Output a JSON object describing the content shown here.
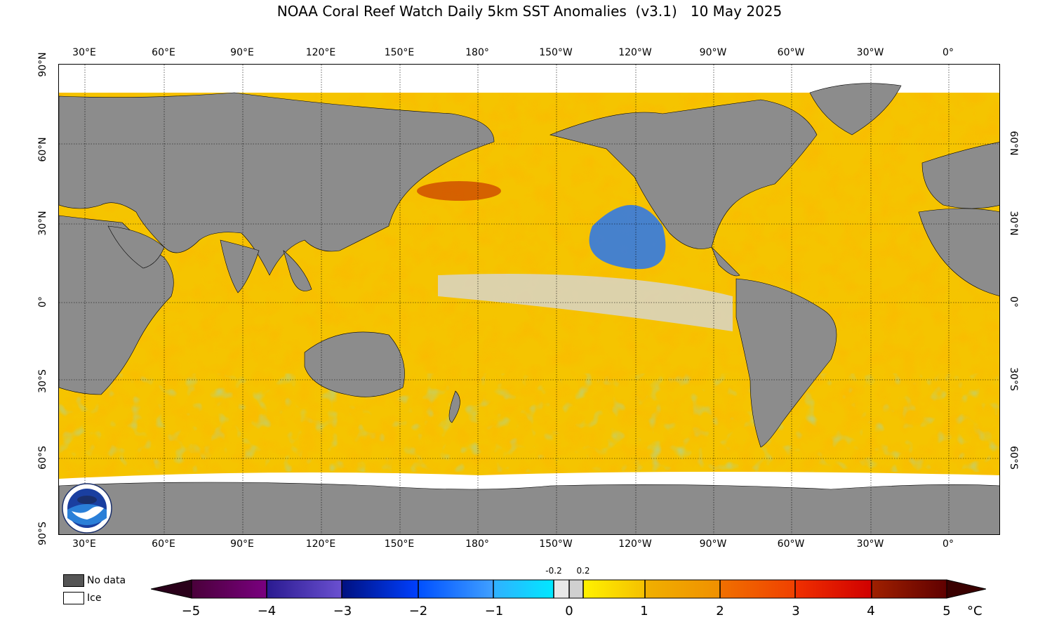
{
  "title": "NOAA Coral Reef Watch Daily 5km SST Anomalies  (v3.1)   10 May 2025",
  "lon_ticks": [
    "30°E",
    "60°E",
    "90°E",
    "120°E",
    "150°E",
    "180°",
    "150°W",
    "120°W",
    "90°W",
    "60°W",
    "30°W",
    "0°"
  ],
  "lat_ticks": [
    "90°N",
    "60°N",
    "30°N",
    "0°",
    "30°S",
    "60°S",
    "90°S"
  ],
  "right_lat_ticks": [
    "60°N",
    "30°N",
    "0°",
    "30°S",
    "60°S"
  ],
  "legend": {
    "no_data_label": "No data",
    "no_data_color": "#555555",
    "ice_label": "Ice",
    "ice_color": "#ffffff"
  },
  "colorbar": {
    "labels": [
      "−5",
      "−4",
      "−3",
      "−2",
      "−1",
      "0",
      "1",
      "2",
      "3",
      "4",
      "5"
    ],
    "minor_labels": [
      "-0.2",
      "0.2"
    ],
    "unit": "°C",
    "colors": {
      "m5": "#2a001a",
      "m4": "#5a0070",
      "m3": "#3a2aa0",
      "m2": "#0018c0",
      "m1": "#2a80ff",
      "m0": "#30d8ff",
      "neutral": "#d8d8d8",
      "p0": "#ffe800",
      "p1": "#f0b000",
      "p2": "#f07000",
      "p3": "#e02000",
      "p4": "#a01000",
      "p5": "#3a0000"
    }
  },
  "map": {
    "land_color": "#8c8c8c",
    "ocean_warm_color": "#f5c400",
    "ice_color": "#ffffff"
  }
}
